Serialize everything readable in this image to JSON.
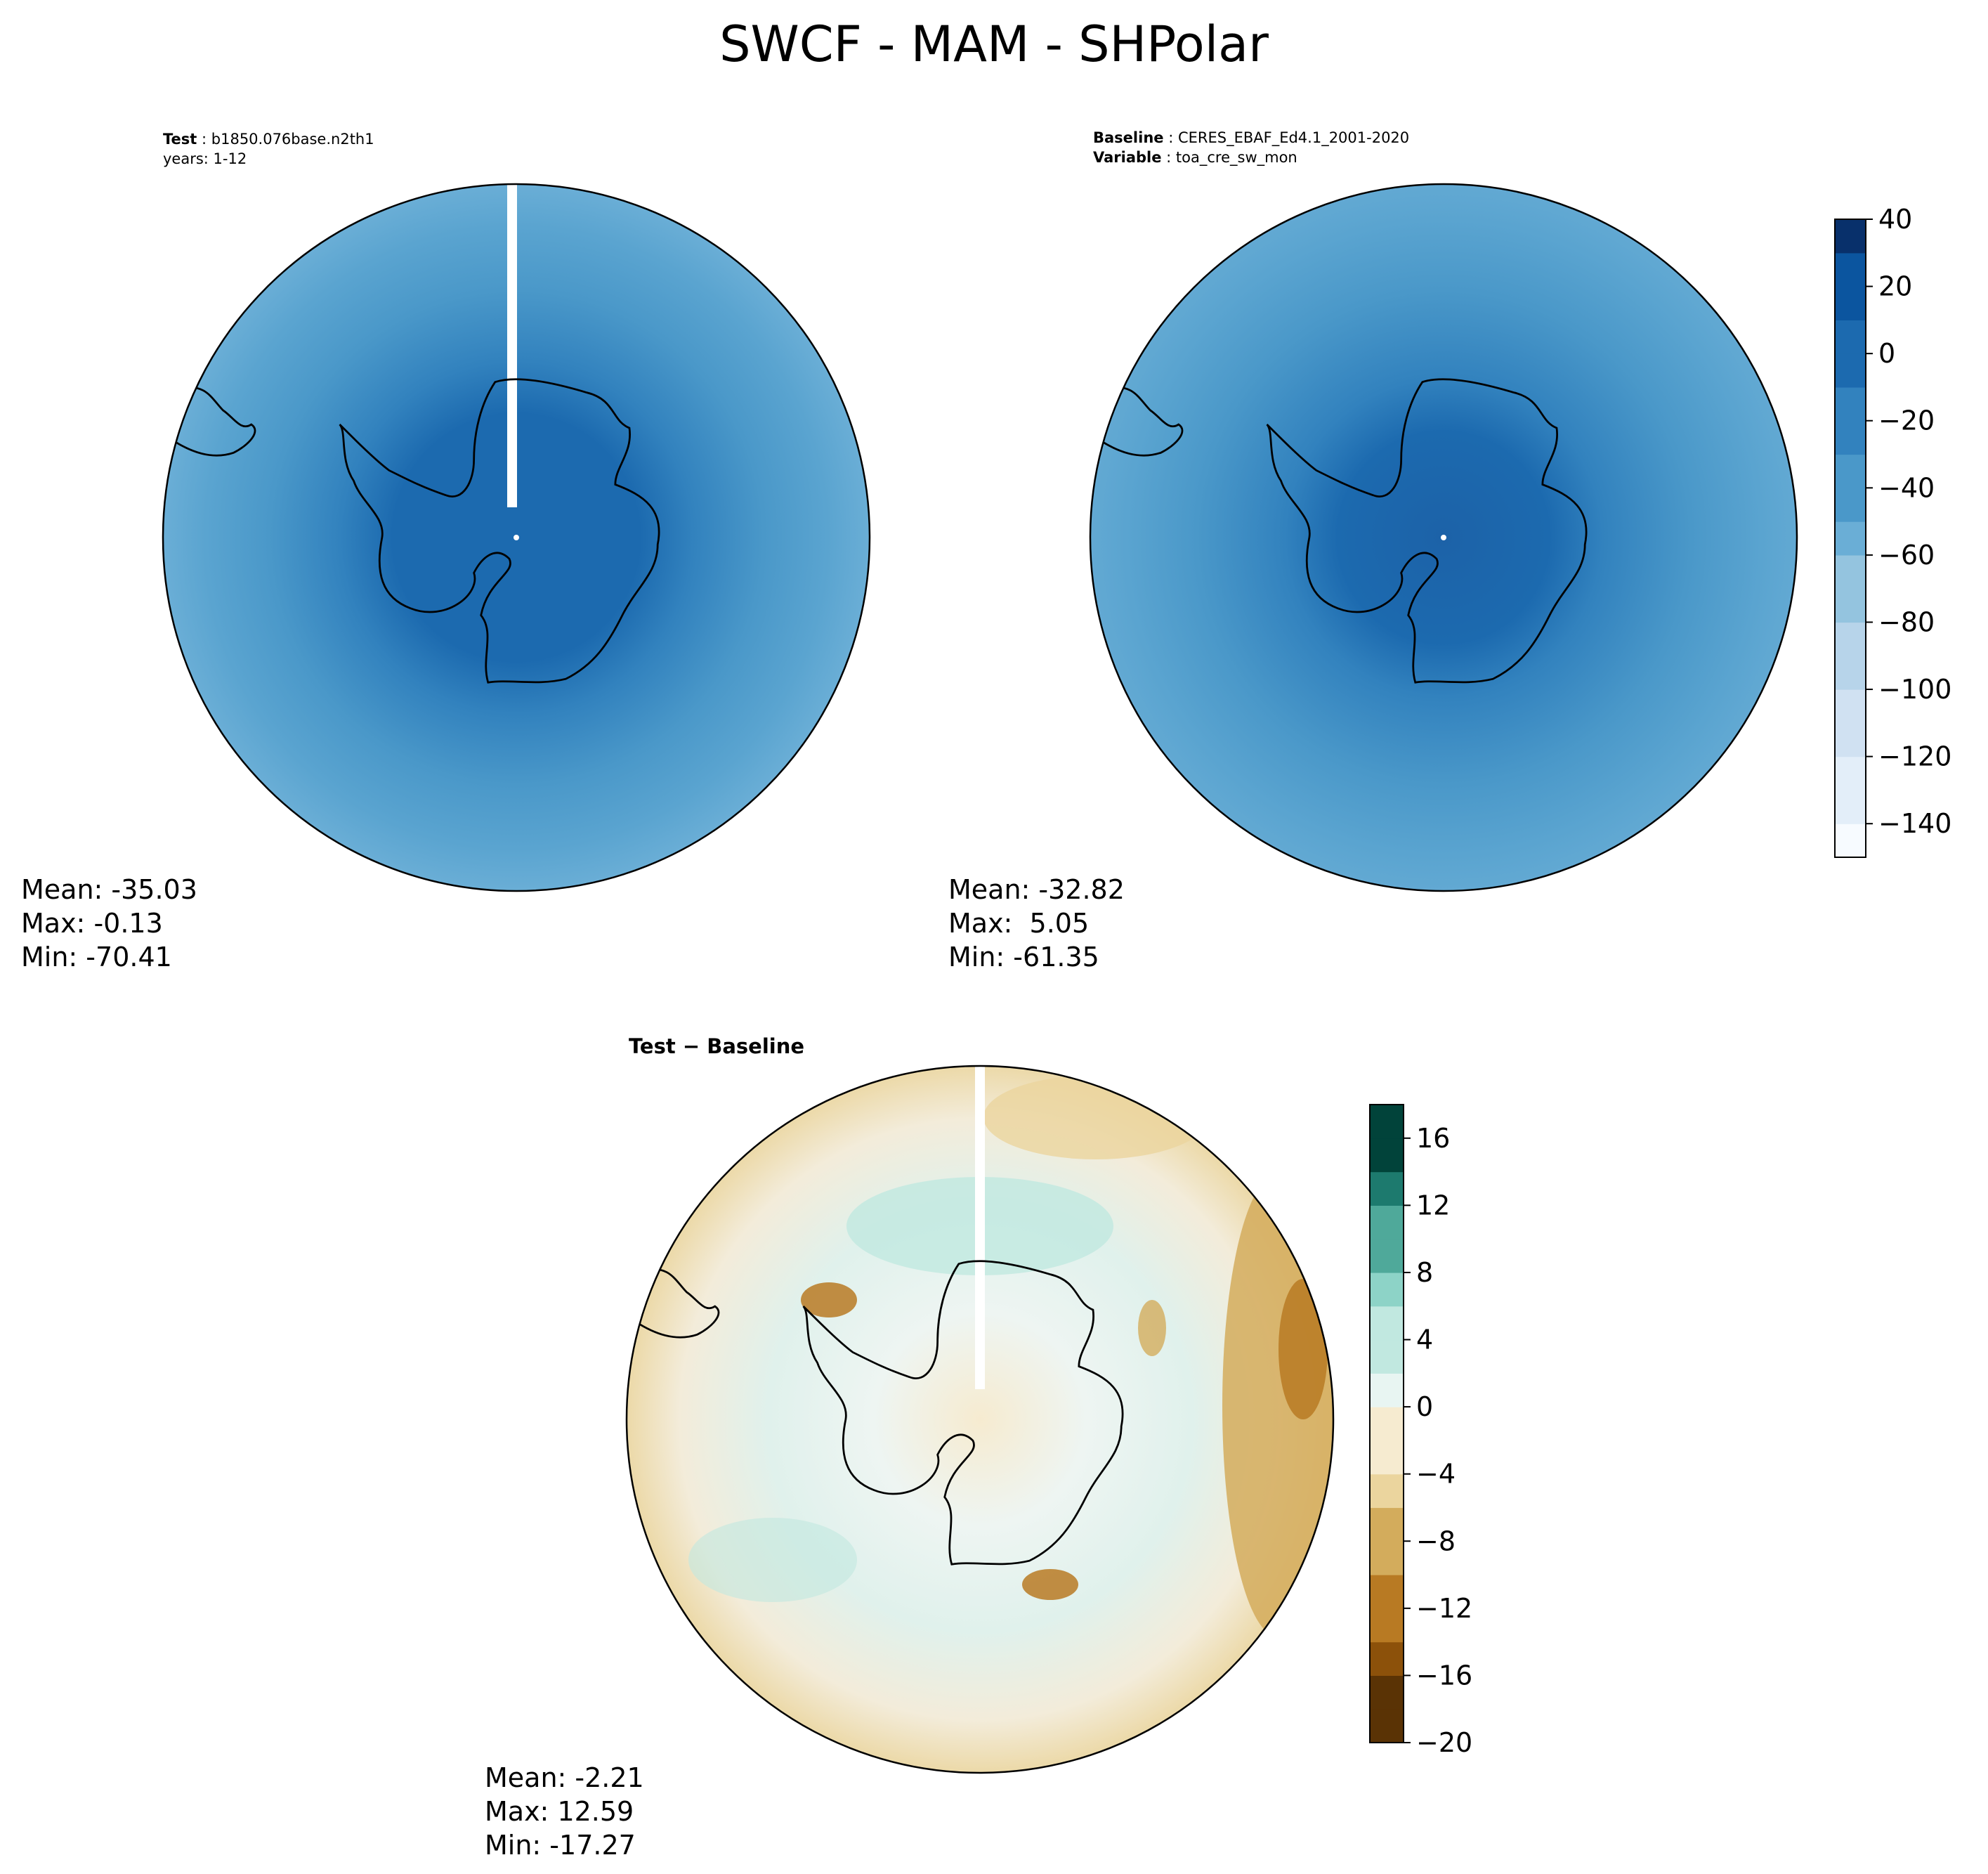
{
  "figure_title": "SWCF - MAM - SHPolar",
  "panels": {
    "test": {
      "header_label": "Test",
      "header_value": "b1850.076base.n2th1",
      "header_line2": "years: 1-12",
      "mean": "Mean: -35.03",
      "max": "Max: -0.13",
      "min": "Min: -70.41"
    },
    "baseline": {
      "header_label": "Baseline",
      "header_value": "CERES_EBAF_Ed4.1_2001-2020",
      "variable_label": "Variable",
      "variable_value": "toa_cre_sw_mon",
      "mean": "Mean: -32.82",
      "max": "Max:  5.05",
      "min": "Min: -61.35"
    },
    "diff": {
      "title_a": "Test",
      "title_sep": " − ",
      "title_b": "Baseline",
      "mean": "Mean: -2.21",
      "max": "Max: 12.59",
      "min": "Min: -17.27"
    }
  },
  "colors": {
    "land_outline": "#000000",
    "blues": [
      "#f7fbff",
      "#e3eef9",
      "#d0e1f2",
      "#b7d4ea",
      "#94c4df",
      "#6aaed6",
      "#4a98c9",
      "#3282be",
      "#1c6aaf",
      "#0b559f",
      "#08306b"
    ],
    "brbg_neg": [
      "#5a3305",
      "#8c510a",
      "#b87a23",
      "#d3ac5c",
      "#ebd59e",
      "#f6ebd0"
    ],
    "brbg_pos": [
      "#e8f5f2",
      "#c1e8e0",
      "#8dd3c7",
      "#4fa99a",
      "#1d7a6e",
      "#01433a"
    ]
  },
  "chart_data": [
    {
      "type": "heatmap",
      "projection": "south polar stereographic",
      "name": "Test",
      "field": "SWCF",
      "mean": -35.03,
      "max": -0.13,
      "min": -70.41,
      "colorbar": "shared with Baseline"
    },
    {
      "type": "heatmap",
      "projection": "south polar stereographic",
      "name": "Baseline",
      "field": "SWCF",
      "mean": -32.82,
      "max": 5.05,
      "min": -61.35,
      "colorbar": {
        "colormap": "Blues",
        "range": [
          -150,
          40
        ],
        "ticks": [
          40,
          20,
          0,
          -20,
          -40,
          -60,
          -80,
          -100,
          -120,
          -140
        ],
        "tick_labels": [
          "40",
          "20",
          "0",
          "−20",
          "−40",
          "−60",
          "−80",
          "−100",
          "−120",
          "−140"
        ]
      }
    },
    {
      "type": "heatmap",
      "projection": "south polar stereographic",
      "name": "Test − Baseline",
      "field": "SWCF difference",
      "mean": -2.21,
      "max": 12.59,
      "min": -17.27,
      "colorbar": {
        "colormap": "BrBG",
        "range": [
          -20,
          18
        ],
        "ticks": [
          16,
          12,
          8,
          4,
          0,
          -4,
          -8,
          -12,
          -16,
          -20
        ],
        "tick_labels": [
          "16",
          "12",
          "8",
          "4",
          "0",
          "−4",
          "−8",
          "−12",
          "−16",
          "−20"
        ]
      }
    }
  ]
}
